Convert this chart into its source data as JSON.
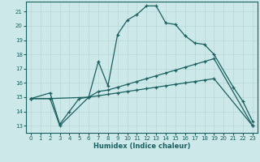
{
  "xlabel": "Humidex (Indice chaleur)",
  "xlim": [
    -0.5,
    23.5
  ],
  "ylim": [
    12.5,
    21.7
  ],
  "xticks": [
    0,
    1,
    2,
    3,
    4,
    5,
    6,
    7,
    8,
    9,
    10,
    11,
    12,
    13,
    14,
    15,
    16,
    17,
    18,
    19,
    20,
    21,
    22,
    23
  ],
  "yticks": [
    13,
    14,
    15,
    16,
    17,
    18,
    19,
    20,
    21
  ],
  "bg_color": "#cde8e8",
  "grid_color": "#b8d8d8",
  "line_color": "#1a6060",
  "line1_x": [
    0,
    2,
    3,
    4,
    5,
    6,
    7,
    8,
    9,
    10,
    11,
    12,
    13,
    14,
    15,
    16,
    17,
    18,
    19,
    21,
    22,
    23
  ],
  "line1_y": [
    14.9,
    15.3,
    13.1,
    14.0,
    14.9,
    15.0,
    17.5,
    15.8,
    19.4,
    20.4,
    20.8,
    21.4,
    21.4,
    20.2,
    20.1,
    19.3,
    18.8,
    18.7,
    18.0,
    15.7,
    14.7,
    13.3
  ],
  "line2_x": [
    0,
    2,
    6,
    7,
    8,
    9,
    10,
    11,
    12,
    13,
    14,
    15,
    16,
    17,
    18,
    19,
    23
  ],
  "line2_y": [
    14.9,
    14.9,
    15.0,
    15.4,
    15.5,
    15.7,
    15.9,
    16.1,
    16.3,
    16.5,
    16.7,
    16.9,
    17.1,
    17.3,
    17.5,
    17.7,
    13.0
  ],
  "line3_x": [
    0,
    2,
    3,
    6,
    7,
    8,
    9,
    10,
    11,
    12,
    13,
    14,
    15,
    16,
    17,
    18,
    19,
    23
  ],
  "line3_y": [
    14.9,
    14.9,
    13.0,
    15.0,
    15.1,
    15.2,
    15.3,
    15.4,
    15.5,
    15.6,
    15.7,
    15.8,
    15.9,
    16.0,
    16.1,
    16.2,
    16.3,
    13.0
  ]
}
